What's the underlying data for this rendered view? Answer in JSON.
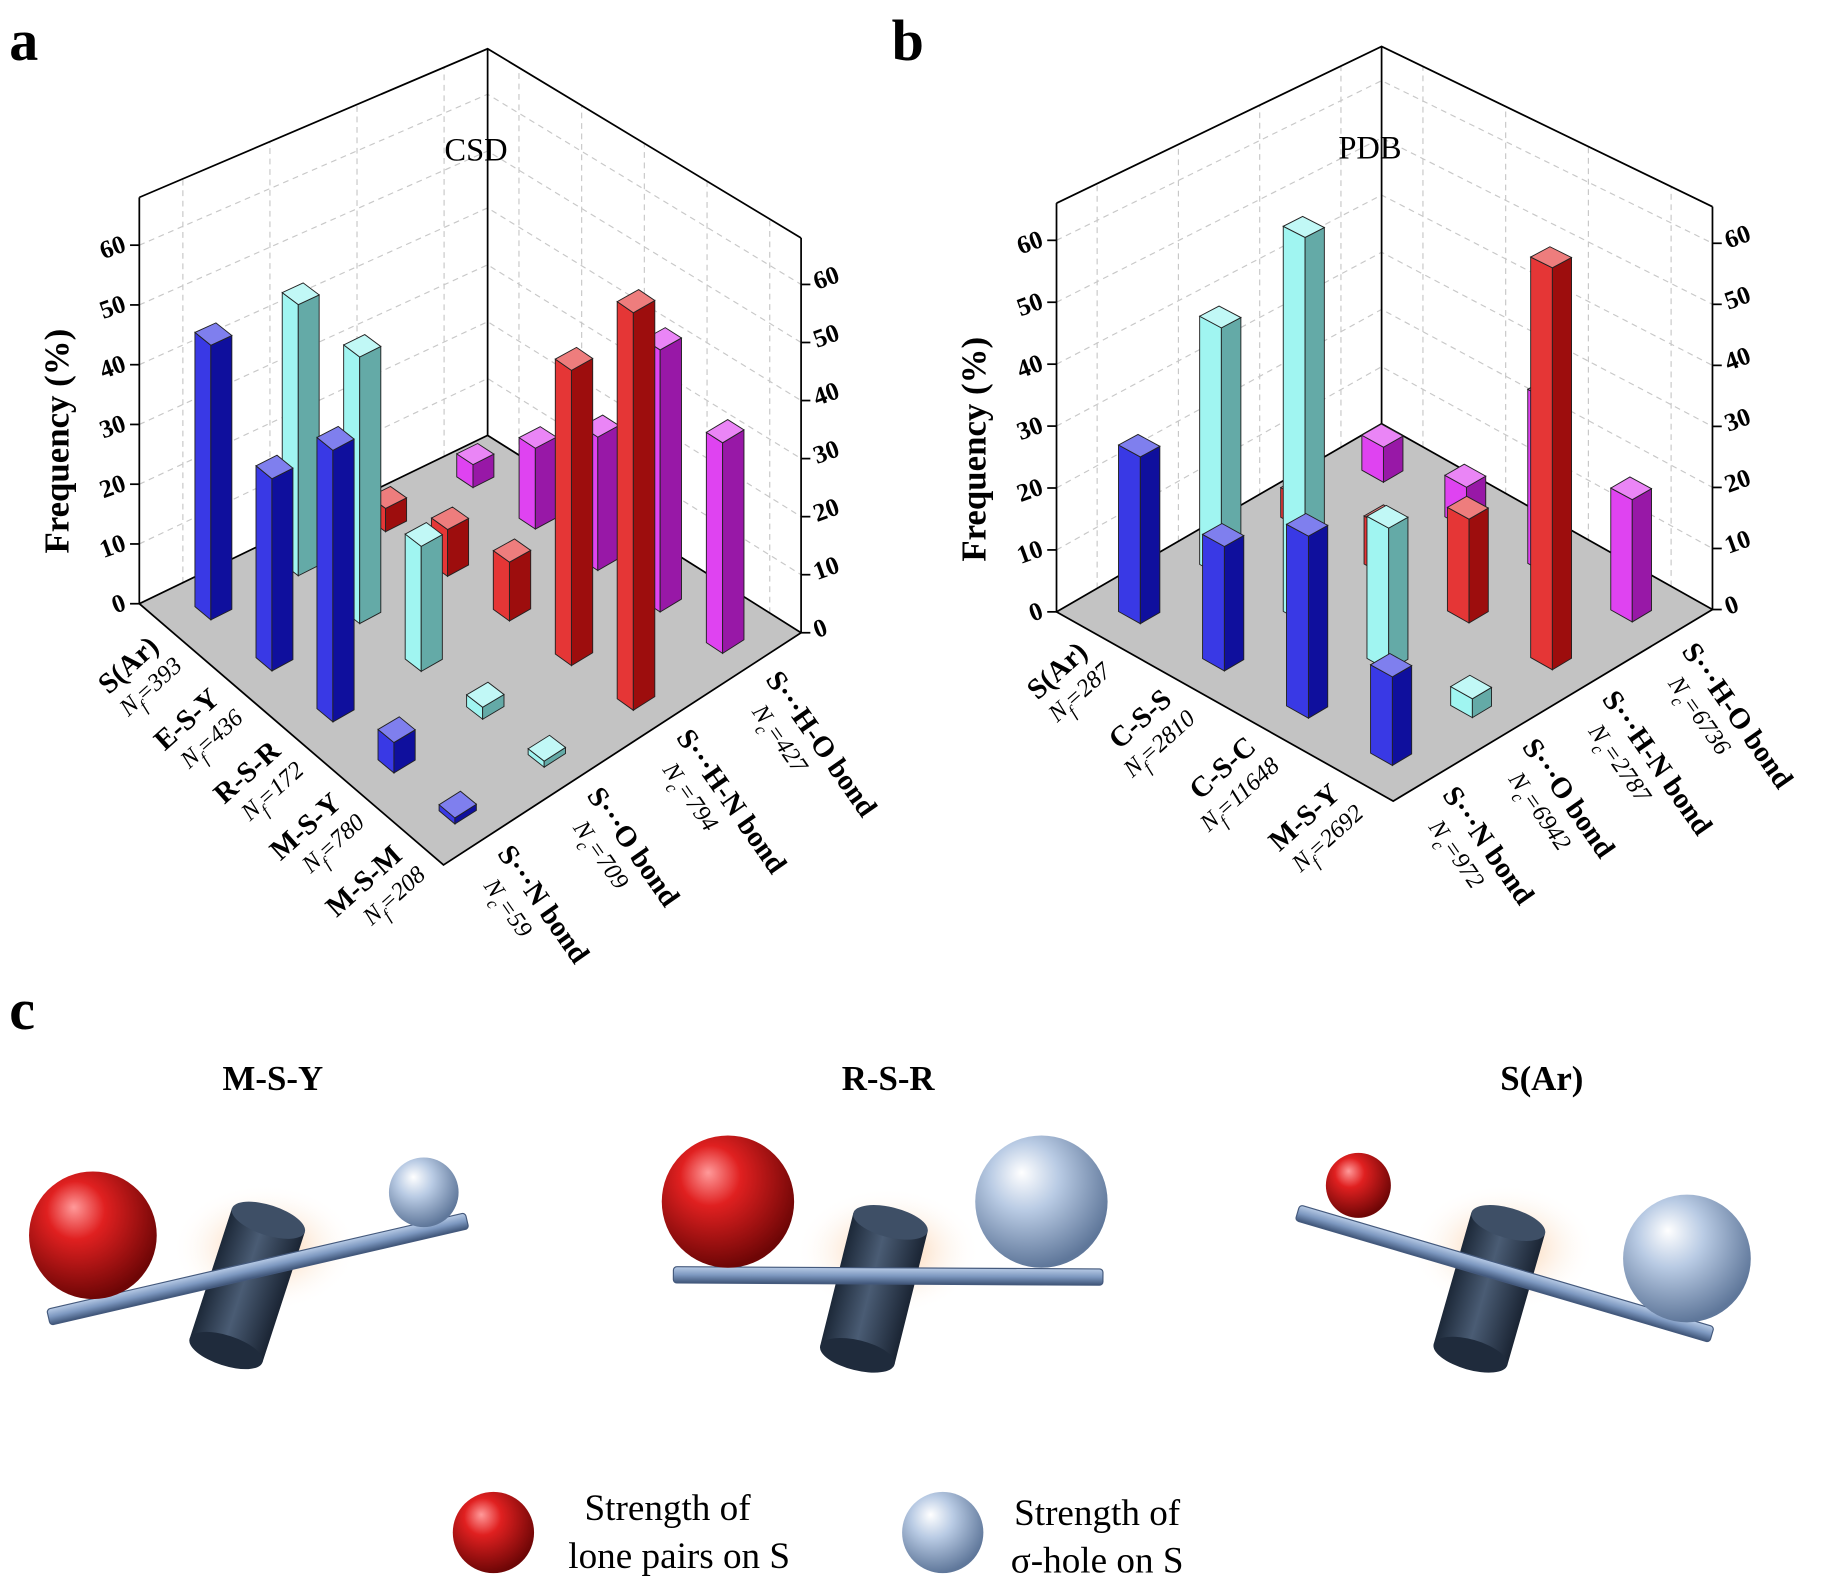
{
  "panel_labels": [
    "a",
    "b",
    "c"
  ],
  "chart_data": [
    {
      "type": "bar3d",
      "title": "CSD",
      "z_label": "Frequency (%)",
      "zlim": [
        0,
        68
      ],
      "zticks": [
        0,
        10,
        20,
        30,
        40,
        50,
        60
      ],
      "grid": true,
      "categories": [
        {
          "name": "S(Ar)",
          "symbol": "N",
          "subscript": "f",
          "count": "=393"
        },
        {
          "name": "E-S-Y",
          "symbol": "N",
          "subscript": "f",
          "count": "=436"
        },
        {
          "name": "R-S-R",
          "symbol": "N",
          "subscript": "f",
          "count": "=172"
        },
        {
          "name": "M-S-Y",
          "symbol": "N",
          "subscript": "f",
          "count": "=780"
        },
        {
          "name": "M-S-M",
          "symbol": "N",
          "subscript": "f",
          "count": "=208"
        }
      ],
      "series": [
        {
          "name": "S···N bond",
          "symbol": "N",
          "subscript": "c",
          "count": "=59",
          "color": "#1616e0",
          "values": [
            46,
            32,
            45,
            5,
            1
          ]
        },
        {
          "name": "S···O bond",
          "symbol": "N",
          "subscript": "c",
          "count": "=709",
          "color": "#8ff3ee",
          "values": [
            46,
            45,
            21,
            2,
            1
          ]
        },
        {
          "name": "S···H-N bond",
          "symbol": "N",
          "subscript": "c",
          "count": "=794",
          "color": "#e01212",
          "values": [
            4,
            8,
            10,
            50,
            67
          ]
        },
        {
          "name": "S···H-O bond",
          "symbol": "N",
          "subscript": "c",
          "count": "=427",
          "color": "#d922ee",
          "values": [
            4,
            14,
            23,
            45,
            36
          ]
        }
      ]
    },
    {
      "type": "bar3d",
      "title": "PDB",
      "z_label": "Frequency (%)",
      "zlim": [
        0,
        66
      ],
      "zticks": [
        0,
        10,
        20,
        30,
        40,
        50,
        60
      ],
      "grid": true,
      "categories": [
        {
          "name": "S(Ar)",
          "symbol": "N",
          "subscript": "f",
          "count": "=287"
        },
        {
          "name": "C-S-S",
          "symbol": "N",
          "subscript": "f",
          "count": "=2810"
        },
        {
          "name": "C-S-C",
          "symbol": "N",
          "subscript": "f",
          "count": "=11648"
        },
        {
          "name": "M-S-Y",
          "symbol": "N",
          "subscript": "f",
          "count": "=2692"
        }
      ],
      "series": [
        {
          "name": "S···N bond",
          "symbol": "N",
          "subscript": "c",
          "count": "=972",
          "color": "#1616e0",
          "values": [
            27,
            20,
            29,
            14
          ]
        },
        {
          "name": "S···O bond",
          "symbol": "N",
          "subscript": "c",
          "count": "=6942",
          "color": "#8ff3ee",
          "values": [
            41,
            63,
            23,
            3
          ]
        },
        {
          "name": "S···H-N bond",
          "symbol": "N",
          "subscript": "c",
          "count": "=2787",
          "color": "#e01212",
          "values": [
            5,
            8,
            17,
            65
          ]
        },
        {
          "name": "S···H-O bond",
          "symbol": "N",
          "subscript": "c",
          "count": "=6736",
          "color": "#d922ee",
          "values": [
            6,
            7,
            29,
            20
          ]
        }
      ]
    }
  ],
  "diagram": {
    "titles": [
      "M-S-Y",
      "R-S-R",
      "S(Ar)"
    ],
    "legend": [
      [
        "Strength of",
        "lone pairs on S"
      ],
      [
        "Strength of",
        "σ-hole on S"
      ]
    ]
  }
}
